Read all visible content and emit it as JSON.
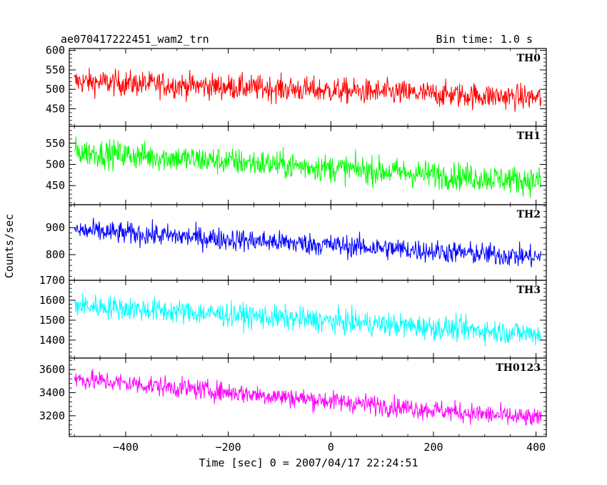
{
  "header": {
    "title": "ae070417222451_wam2_trn",
    "bin_time": "Bin time: 1.0 s"
  },
  "chart_data": {
    "type": "line",
    "xlabel": "Time [sec] 0 = 2007/04/17 22:24:51",
    "ylabel": "Counts/sec",
    "xlim": [
      -510,
      420
    ],
    "xticks": [
      -400,
      -200,
      0,
      200,
      400
    ],
    "xtick_labels": [
      "−400",
      "−200",
      "0",
      "200",
      "400"
    ],
    "x": {
      "start": -500,
      "end": 410,
      "step": 1
    },
    "panels": [
      {
        "name": "TH0",
        "color": "#ff0000",
        "ylim": [
          405,
          605
        ],
        "yticks": [
          450,
          500,
          550,
          600
        ],
        "trend": [
          520,
          478
        ],
        "noise": 30
      },
      {
        "name": "TH1",
        "color": "#00ff00",
        "ylim": [
          405,
          590
        ],
        "yticks": [
          450,
          500,
          550
        ],
        "trend": [
          530,
          460
        ],
        "noise": 30
      },
      {
        "name": "TH2",
        "color": "#0000ff",
        "ylim": [
          705,
          985
        ],
        "yticks": [
          800,
          900
        ],
        "trend": [
          890,
          790
        ],
        "noise": 38
      },
      {
        "name": "TH3",
        "color": "#00ffff",
        "ylim": [
          1310,
          1700
        ],
        "yticks": [
          1400,
          1500,
          1600,
          1700
        ],
        "trend": [
          1575,
          1430
        ],
        "noise": 55
      },
      {
        "name": "TH0123",
        "color": "#ff00ff",
        "ylim": [
          3020,
          3700
        ],
        "yticks": [
          3200,
          3400,
          3600
        ],
        "trend": [
          3520,
          3170
        ],
        "noise": 80
      }
    ]
  }
}
